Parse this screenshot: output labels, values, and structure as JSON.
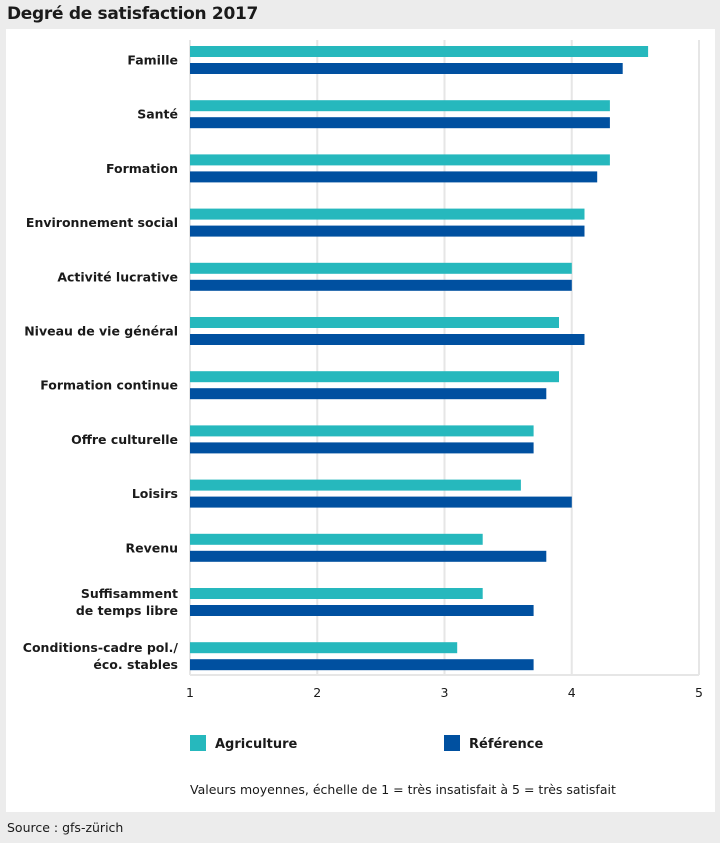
{
  "title": "Degré de satisfaction 2017",
  "source": "Source : gfs-zürich",
  "colors": {
    "agriculture": "#26b8bd",
    "reference": "#0050a0",
    "grid": "#e6e6e6"
  },
  "chart_data": {
    "type": "bar",
    "orientation": "horizontal",
    "title": "Degré de satisfaction 2017",
    "note": "Valeurs moyennes, échelle de 1 = très insatisfait à 5 = très satisfait",
    "categories": [
      [
        "Famille"
      ],
      [
        "Santé"
      ],
      [
        "Formation"
      ],
      [
        "Environnement social"
      ],
      [
        "Activité lucrative"
      ],
      [
        "Niveau de vie général"
      ],
      [
        "Formation continue"
      ],
      [
        "Offre culturelle"
      ],
      [
        "Loisirs"
      ],
      [
        "Revenu"
      ],
      [
        "Suffisamment",
        "de temps libre"
      ],
      [
        "Conditions-cadre pol./",
        "éco. stables"
      ]
    ],
    "series": [
      {
        "name": "Agriculture",
        "values": [
          4.6,
          4.3,
          4.3,
          4.1,
          4.0,
          3.9,
          3.9,
          3.7,
          3.6,
          3.3,
          3.3,
          3.1
        ]
      },
      {
        "name": "Référence",
        "values": [
          4.4,
          4.3,
          4.2,
          4.1,
          4.0,
          4.1,
          3.8,
          3.7,
          4.0,
          3.8,
          3.7,
          3.7
        ]
      }
    ],
    "xlim": [
      1,
      5
    ],
    "xticks": [
      "1",
      "2",
      "3",
      "4",
      "5"
    ],
    "grid": true,
    "legend": "bottom"
  }
}
